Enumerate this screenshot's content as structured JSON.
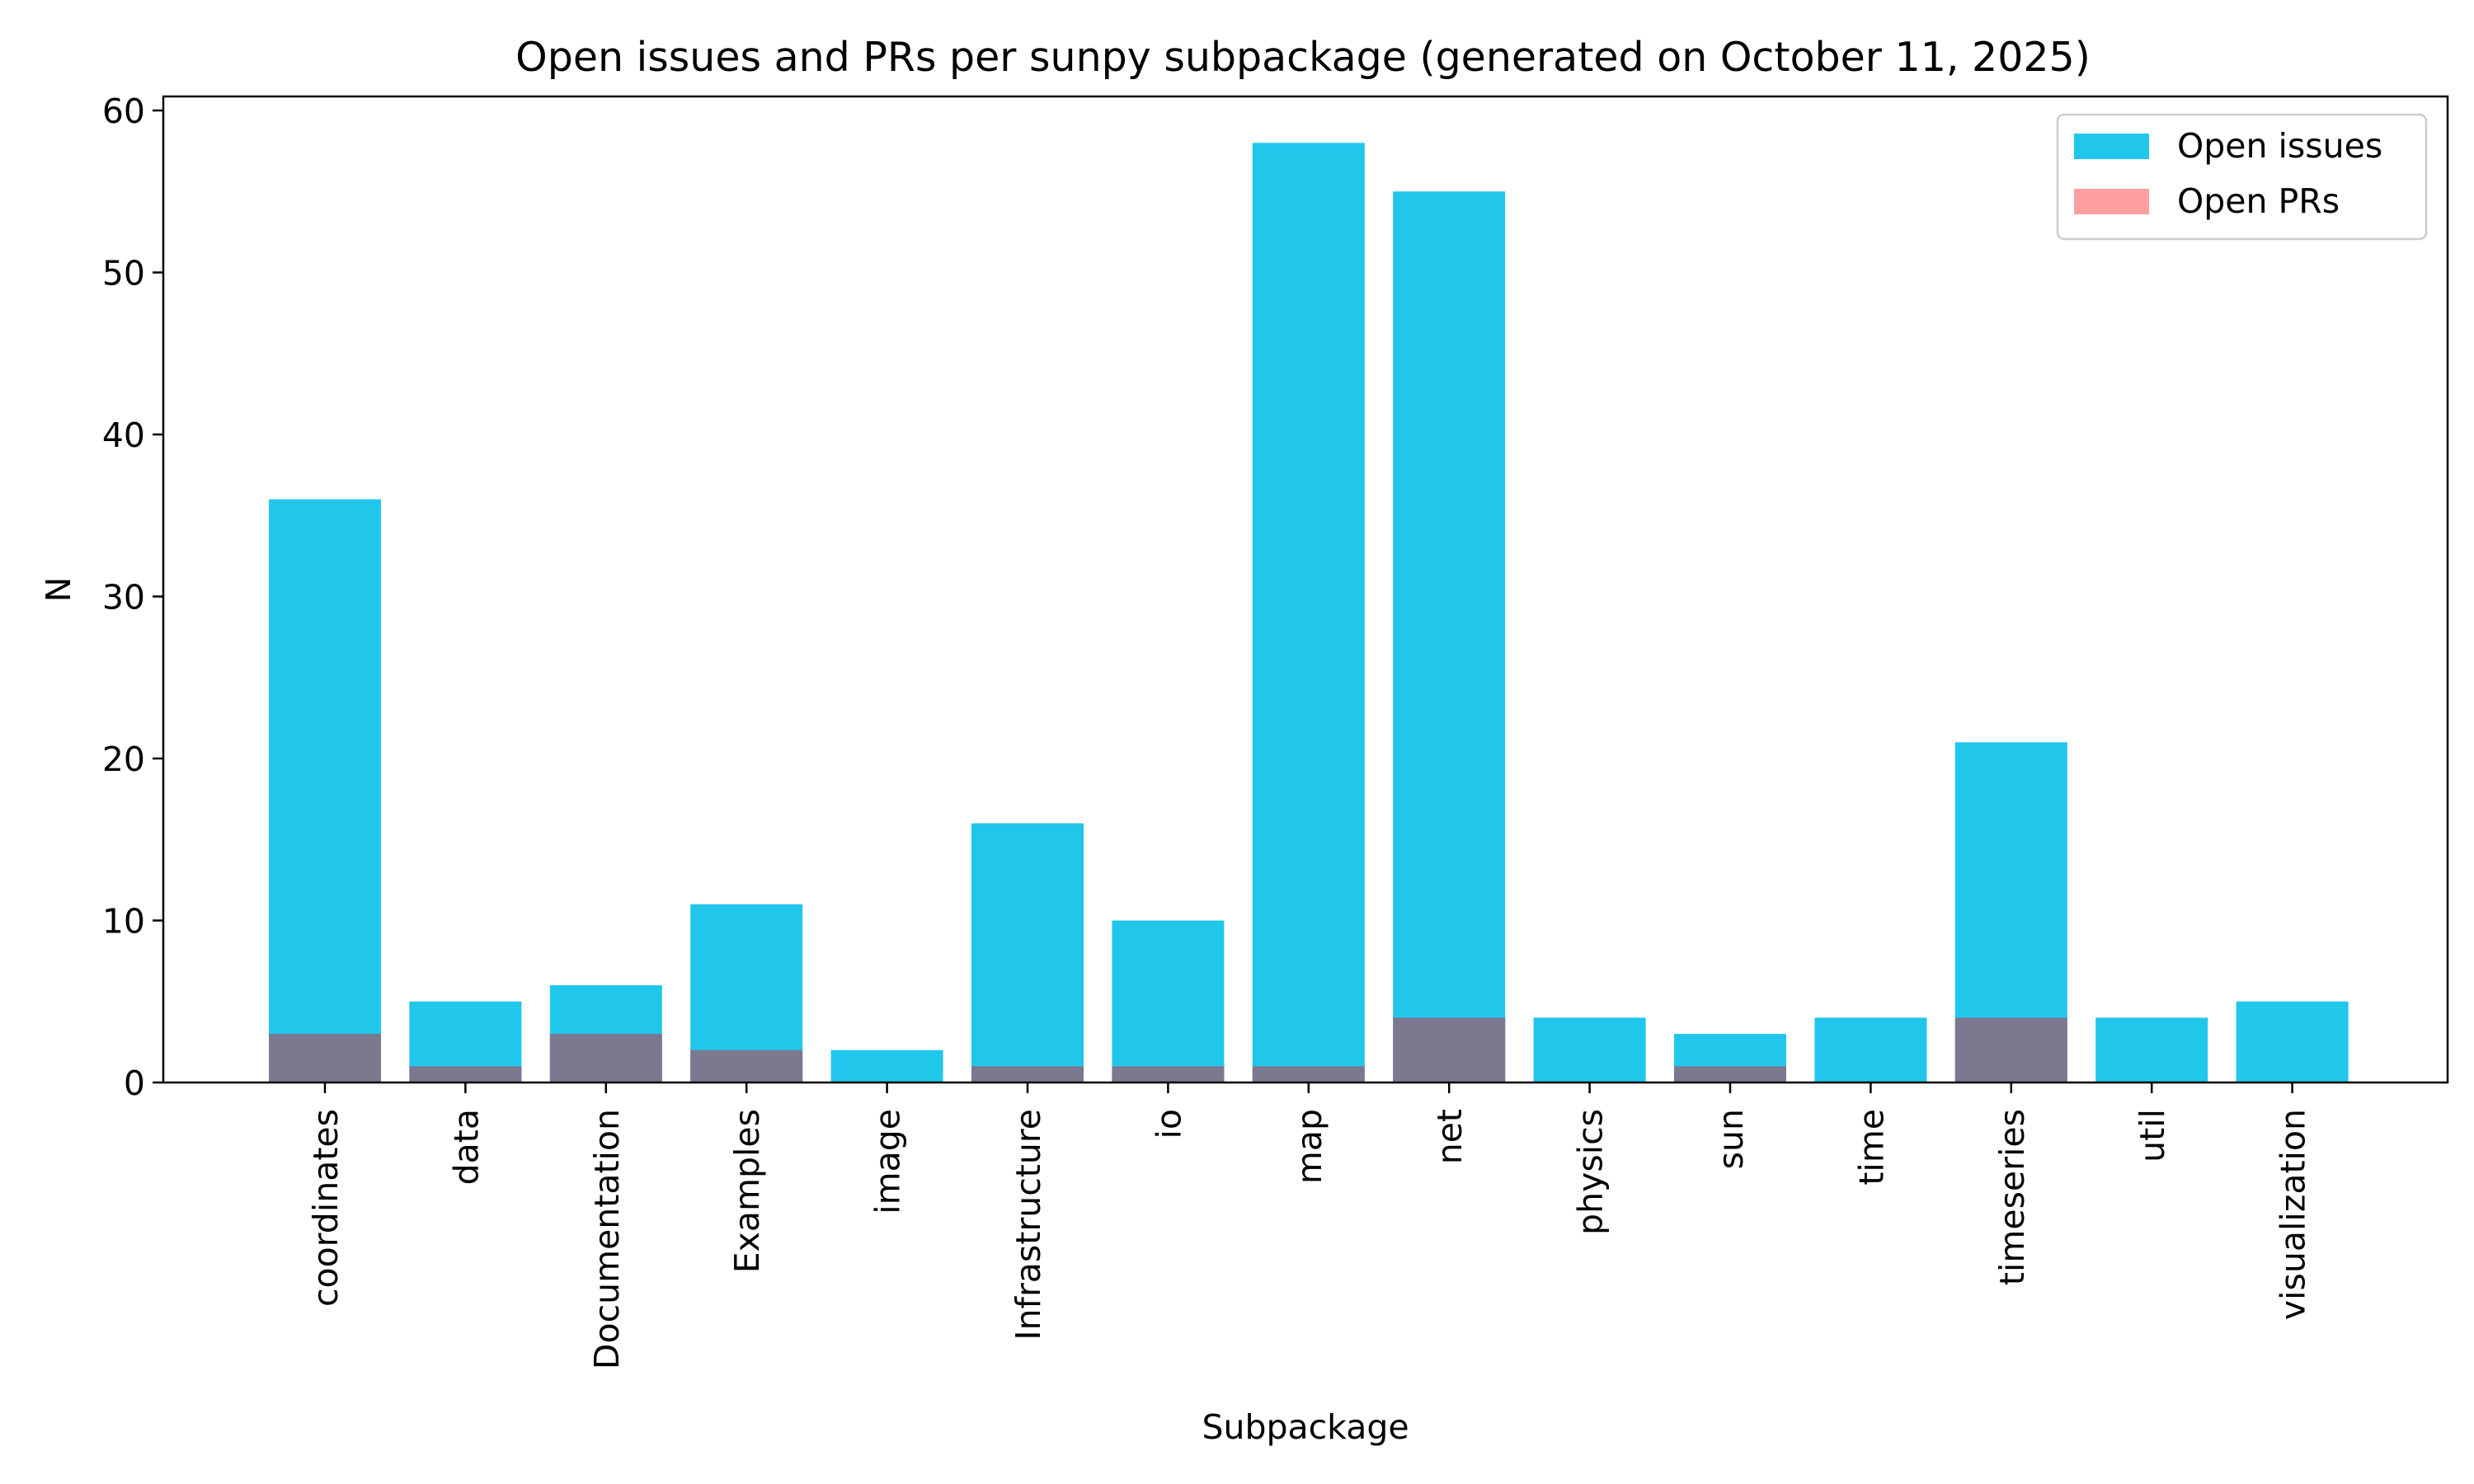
{
  "chart_data": {
    "type": "bar",
    "title": "Open issues and PRs per sunpy subpackage (generated on October 11, 2025)",
    "xlabel": "Subpackage",
    "ylabel": "N",
    "ylim": [
      0,
      61
    ],
    "yticks": [
      0,
      10,
      20,
      30,
      40,
      50,
      60
    ],
    "grid": false,
    "legend_position": "top-right",
    "categories": [
      "coordinates",
      "data",
      "Documentation",
      "Examples",
      "image",
      "Infrastructure",
      "io",
      "map",
      "net",
      "physics",
      "sun",
      "time",
      "timeseries",
      "util",
      "visualization"
    ],
    "series": [
      {
        "name": "Open issues",
        "color": "#00bfe8",
        "alpha": 0.87,
        "values": [
          36,
          5,
          6,
          11,
          2,
          16,
          10,
          58,
          55,
          4,
          3,
          4,
          21,
          4,
          5
        ]
      },
      {
        "name": "Open PRs",
        "color": "#ff8080",
        "alpha": 0.75,
        "values": [
          3,
          1,
          3,
          2,
          0,
          1,
          1,
          1,
          4,
          0,
          1,
          0,
          4,
          0,
          0
        ]
      }
    ],
    "overlap_color": "#7b7890"
  }
}
